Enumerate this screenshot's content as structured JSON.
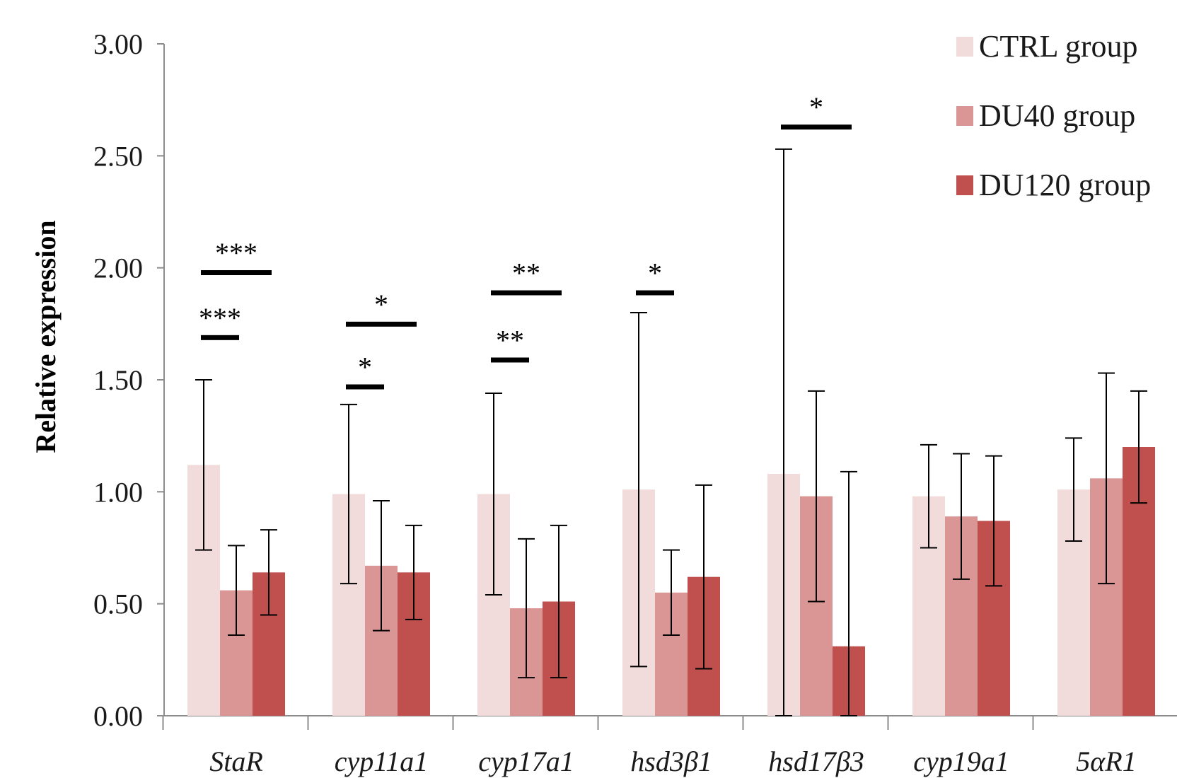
{
  "chart_data": {
    "type": "bar",
    "ylabel": "Relative expression",
    "ylim": [
      0,
      3
    ],
    "yticks": [
      0,
      0.5,
      1.0,
      1.5,
      2.0,
      2.5,
      3.0
    ],
    "ytick_labels": [
      "0.00",
      "0.50",
      "1.00",
      "1.50",
      "2.00",
      "2.50",
      "3.00"
    ],
    "categories": [
      "StaR",
      "cyp11a1",
      "cyp17a1",
      "hsd3β1",
      "hsd17β3",
      "cyp19a1",
      "5αR1"
    ],
    "series": [
      {
        "name": "CTRL group",
        "color": "#f2dcdb",
        "values": [
          1.12,
          0.99,
          0.99,
          1.01,
          1.08,
          0.98,
          1.01
        ],
        "errors": [
          0.38,
          0.4,
          0.45,
          0.79,
          1.45,
          0.23,
          0.23
        ]
      },
      {
        "name": "DU40 group",
        "color": "#d99694",
        "values": [
          0.56,
          0.67,
          0.48,
          0.55,
          0.98,
          0.89,
          1.06
        ],
        "errors": [
          0.2,
          0.29,
          0.31,
          0.19,
          0.47,
          0.28,
          0.47
        ]
      },
      {
        "name": "DU120 group",
        "color": "#c0504d",
        "values": [
          0.64,
          0.64,
          0.51,
          0.62,
          0.31,
          0.87,
          1.2
        ],
        "errors": [
          0.19,
          0.21,
          0.34,
          0.41,
          0.78,
          0.29,
          0.25
        ]
      }
    ],
    "legend_position": "top-right",
    "significance": [
      {
        "category": 0,
        "from": 0,
        "to": 1,
        "y": 1.69,
        "label": "***"
      },
      {
        "category": 0,
        "from": 0,
        "to": 2,
        "y": 1.98,
        "label": "***"
      },
      {
        "category": 1,
        "from": 0,
        "to": 1,
        "y": 1.47,
        "label": "*"
      },
      {
        "category": 1,
        "from": 0,
        "to": 2,
        "y": 1.75,
        "label": "*"
      },
      {
        "category": 2,
        "from": 0,
        "to": 1,
        "y": 1.59,
        "label": "**"
      },
      {
        "category": 2,
        "from": 0,
        "to": 2,
        "y": 1.89,
        "label": "**"
      },
      {
        "category": 3,
        "from": 0,
        "to": 1,
        "y": 1.89,
        "label": "*"
      },
      {
        "category": 4,
        "from": 0,
        "to": 2,
        "y": 2.63,
        "label": "*"
      }
    ]
  }
}
